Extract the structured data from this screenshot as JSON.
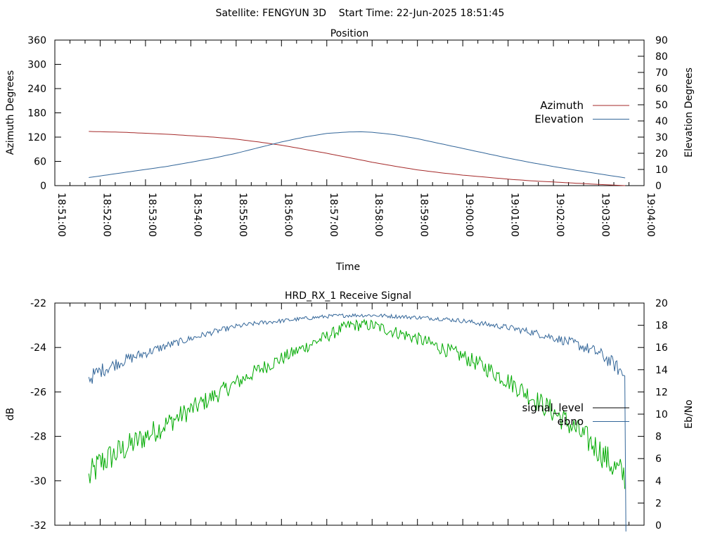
{
  "header": {
    "title": "Satellite: FENGYUN 3D    Start Time: 22-Jun-2025 18:51:45"
  },
  "colors": {
    "azimuth": "#a52a2a",
    "elevation": "#336699",
    "signal_level": "#00aa00",
    "signal_level_legend": "#000000",
    "ebno": "#336699",
    "axis": "#000000"
  },
  "chart_data": [
    {
      "type": "line",
      "title": "Position",
      "xlabel": "Time",
      "ylabel": "Azimuth Degrees",
      "y2label": "Elevation Degrees",
      "xlim": [
        "18:51:00",
        "19:04:00"
      ],
      "ylim": [
        0,
        360
      ],
      "y2lim": [
        0,
        90
      ],
      "xticks": [
        "18:51:00",
        "18:52:00",
        "18:53:00",
        "18:54:00",
        "18:55:00",
        "18:56:00",
        "18:57:00",
        "18:58:00",
        "18:59:00",
        "19:00:00",
        "19:01:00",
        "19:02:00",
        "19:03:00",
        "19:04:00"
      ],
      "yticks": [
        "0",
        "60",
        "120",
        "180",
        "240",
        "300",
        "360"
      ],
      "y2ticks": [
        "0",
        "10",
        "20",
        "30",
        "40",
        "50",
        "60",
        "70",
        "80",
        "90"
      ],
      "legend_position": "right",
      "series": [
        {
          "name": "Azimuth",
          "axis": "y",
          "x": [
            "18:51:45",
            "18:52:30",
            "18:53:30",
            "18:54:30",
            "18:55:00",
            "18:55:30",
            "18:56:00",
            "18:56:30",
            "18:57:00",
            "18:57:30",
            "18:58:00",
            "18:58:30",
            "18:59:00",
            "18:59:30",
            "19:00:00",
            "19:00:30",
            "19:01:00",
            "19:01:30",
            "19:02:00",
            "19:02:30",
            "19:03:00",
            "19:03:35"
          ],
          "values": [
            134,
            132,
            127,
            120,
            115,
            108,
            100,
            90,
            80,
            69,
            58,
            48,
            39,
            32,
            26,
            21,
            16,
            12,
            9,
            6,
            3,
            0
          ]
        },
        {
          "name": "Elevation",
          "axis": "y2",
          "x": [
            "18:51:45",
            "18:52:30",
            "18:53:30",
            "18:54:30",
            "18:55:00",
            "18:55:30",
            "18:56:00",
            "18:56:30",
            "18:57:00",
            "18:57:30",
            "18:57:45",
            "18:58:00",
            "18:58:30",
            "18:59:00",
            "18:59:30",
            "19:00:00",
            "19:00:30",
            "19:01:00",
            "19:01:30",
            "19:02:00",
            "19:02:30",
            "19:03:00",
            "19:03:35"
          ],
          "values": [
            5,
            8,
            12,
            17,
            20,
            23.5,
            27,
            30,
            32.3,
            33.2,
            33.3,
            33,
            31.5,
            29,
            26,
            23,
            20,
            17,
            14.3,
            11.8,
            9.5,
            7.3,
            4.8
          ]
        }
      ]
    },
    {
      "type": "line",
      "title": "HRD_RX_1 Receive Signal",
      "xlabel": "",
      "ylabel": "dB",
      "y2label": "Eb/No",
      "xlim": [
        "18:51:00",
        "19:04:00"
      ],
      "ylim": [
        -32,
        -22
      ],
      "y2lim": [
        0,
        20
      ],
      "yticks": [
        "-22",
        "-24",
        "-26",
        "-28",
        "-30",
        "-32"
      ],
      "y2ticks": [
        "0",
        "2",
        "4",
        "6",
        "8",
        "10",
        "12",
        "14",
        "16",
        "18",
        "20"
      ],
      "legend_position": "right",
      "series": [
        {
          "name": "signal_level",
          "axis": "y",
          "x": [
            "18:51:45",
            "18:52:00",
            "18:52:30",
            "18:53:00",
            "18:53:30",
            "18:54:00",
            "18:54:30",
            "18:55:00",
            "18:55:30",
            "18:56:00",
            "18:56:30",
            "18:57:00",
            "18:57:30",
            "18:58:00",
            "18:58:30",
            "18:59:00",
            "18:59:30",
            "19:00:00",
            "19:00:30",
            "19:01:00",
            "19:01:30",
            "19:02:00",
            "19:02:30",
            "19:03:00",
            "19:03:20",
            "19:03:35"
          ],
          "values": [
            -29.9,
            -29.2,
            -28.6,
            -28.0,
            -27.4,
            -26.8,
            -26.2,
            -25.6,
            -25.0,
            -24.5,
            -24.0,
            -23.5,
            -23.0,
            -23.0,
            -23.3,
            -23.6,
            -24.0,
            -24.4,
            -24.9,
            -25.5,
            -26.2,
            -26.9,
            -27.7,
            -28.6,
            -29.4,
            -29.8
          ]
        },
        {
          "name": "ebno",
          "axis": "y2",
          "x": [
            "18:51:45",
            "18:52:00",
            "18:52:30",
            "18:53:00",
            "18:53:30",
            "18:54:00",
            "18:54:30",
            "18:55:00",
            "18:55:30",
            "18:56:00",
            "18:56:30",
            "18:57:00",
            "18:57:30",
            "18:58:00",
            "18:58:30",
            "18:59:00",
            "18:59:30",
            "19:00:00",
            "19:00:30",
            "19:01:00",
            "19:01:30",
            "19:02:00",
            "19:02:30",
            "19:03:00",
            "19:03:20",
            "19:03:35",
            "19:03:36"
          ],
          "values": [
            13.2,
            13.9,
            14.8,
            15.5,
            16.2,
            16.8,
            17.4,
            17.9,
            18.2,
            18.4,
            18.6,
            18.8,
            18.9,
            18.9,
            18.8,
            18.7,
            18.6,
            18.4,
            18.1,
            17.8,
            17.4,
            16.9,
            16.3,
            15.5,
            14.5,
            13.4,
            0
          ]
        }
      ]
    }
  ]
}
